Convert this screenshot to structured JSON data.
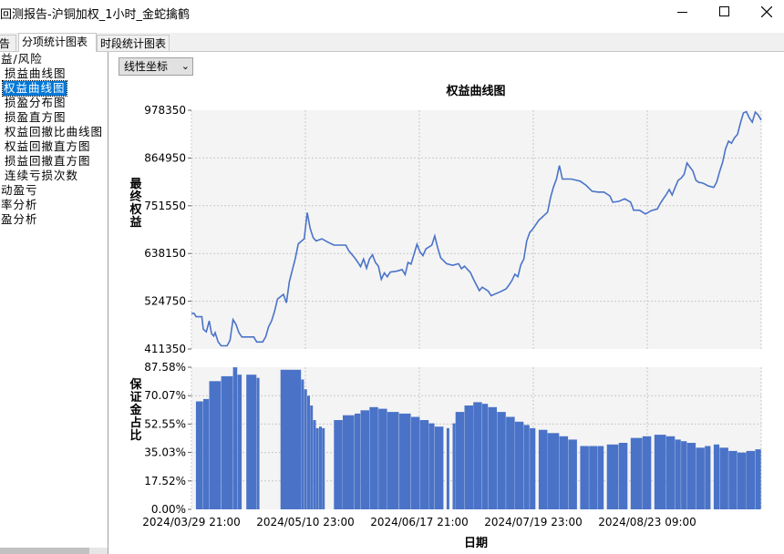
{
  "window": {
    "title": "回测报告-沪铜加权_1小时_金蛇擒鹤"
  },
  "tabs": [
    {
      "label": "告"
    },
    {
      "label": "分项统计图表"
    },
    {
      "label": "时段统计图表"
    }
  ],
  "sidebar": {
    "items": [
      {
        "label": "益/风险"
      },
      {
        "label": "损益曲线图"
      },
      {
        "label": "权益曲线图"
      },
      {
        "label": "损盈分布图"
      },
      {
        "label": "损盈直方图"
      },
      {
        "label": "权益回撤比曲线图"
      },
      {
        "label": "权益回撤直方图"
      },
      {
        "label": "损益回撤直方图"
      },
      {
        "label": "连续亏损次数"
      },
      {
        "label": "动盈亏"
      },
      {
        "label": "率分析"
      },
      {
        "label": "盈分析"
      }
    ]
  },
  "scale_select": {
    "value": "线性坐标"
  },
  "colors": {
    "series": "#4a73c8",
    "plot_bg": "#f4f4f4",
    "grid": "#c8c8c8"
  },
  "chart_data": [
    {
      "type": "line",
      "title": "权益曲线图",
      "ylabel": "最终权益",
      "xlabel": "日期",
      "y_ticks": [
        "978350",
        "864950",
        "751550",
        "638150",
        "524750",
        "411350"
      ],
      "x_ticks": [
        "2024/03/29 21:00",
        "2024/05/10 23:00",
        "2024/06/17 21:00",
        "2024/07/19 23:00",
        "2024/08/23 09:00"
      ],
      "ylim": [
        411350,
        978350
      ],
      "grid": true,
      "series": [
        {
          "points": [
            [
              0,
              496000
            ],
            [
              0.9,
              496000
            ],
            [
              1.6,
              488000
            ],
            [
              3.5,
              488000
            ],
            [
              4,
              458000
            ],
            [
              5,
              452000
            ],
            [
              6,
              478000
            ],
            [
              6.8,
              448000
            ],
            [
              7.5,
              442000
            ],
            [
              8,
              450000
            ],
            [
              9,
              428000
            ],
            [
              10,
              419000
            ],
            [
              12,
              419000
            ],
            [
              13,
              432000
            ],
            [
              14,
              481000
            ],
            [
              15,
              470000
            ],
            [
              16,
              450000
            ],
            [
              17,
              440000
            ],
            [
              19,
              440000
            ],
            [
              21,
              440000
            ],
            [
              22,
              428000
            ],
            [
              24,
              428000
            ],
            [
              25,
              440000
            ],
            [
              26,
              464000
            ],
            [
              27,
              478000
            ],
            [
              28,
              500000
            ],
            [
              29,
              530000
            ],
            [
              31,
              541000
            ],
            [
              32,
              521000
            ],
            [
              33,
              571000
            ],
            [
              35,
              626000
            ],
            [
              36,
              661000
            ],
            [
              38,
              673000
            ],
            [
              39,
              735000
            ],
            [
              40,
              698000
            ],
            [
              41,
              676000
            ],
            [
              42,
              668000
            ],
            [
              44,
              673000
            ],
            [
              46,
              665000
            ],
            [
              48,
              658000
            ],
            [
              52,
              658000
            ],
            [
              53,
              645000
            ],
            [
              55,
              628000
            ],
            [
              56,
              618000
            ],
            [
              57,
              607000
            ],
            [
              58,
              625000
            ],
            [
              59,
              603000
            ],
            [
              60,
              625000
            ],
            [
              61,
              635000
            ],
            [
              62,
              617000
            ],
            [
              63,
              608000
            ],
            [
              64,
              577000
            ],
            [
              65,
              592000
            ],
            [
              66,
              583000
            ],
            [
              67,
              594000
            ],
            [
              69,
              596000
            ],
            [
              70,
              598000
            ],
            [
              71,
              600000
            ],
            [
              72,
              588000
            ],
            [
              73,
              617000
            ],
            [
              74,
              613000
            ],
            [
              76,
              660000
            ],
            [
              77,
              642000
            ],
            [
              78,
              633000
            ],
            [
              79,
              649000
            ],
            [
              81,
              658000
            ],
            [
              82,
              680000
            ],
            [
              83,
              651000
            ],
            [
              84,
              628000
            ],
            [
              86,
              614000
            ],
            [
              88,
              610000
            ],
            [
              90,
              614000
            ],
            [
              91,
              602000
            ],
            [
              92,
              608000
            ],
            [
              94,
              593000
            ],
            [
              95,
              578000
            ],
            [
              96,
              564000
            ],
            [
              97,
              550000
            ],
            [
              98,
              558000
            ],
            [
              100,
              549000
            ],
            [
              101,
              538000
            ],
            [
              103,
              544000
            ],
            [
              104,
              547000
            ],
            [
              106,
              554000
            ],
            [
              107,
              563000
            ],
            [
              108,
              574000
            ],
            [
              109,
              589000
            ],
            [
              110,
              583000
            ],
            [
              111,
              611000
            ],
            [
              112,
              625000
            ],
            [
              113,
              668000
            ],
            [
              114,
              688000
            ],
            [
              115,
              696000
            ],
            [
              116,
              706000
            ],
            [
              117,
              717000
            ],
            [
              118,
              723000
            ],
            [
              119,
              730000
            ],
            [
              120,
              736000
            ],
            [
              121,
              771000
            ],
            [
              122,
              796000
            ],
            [
              123,
              815000
            ],
            [
              124,
              847000
            ],
            [
              125,
              815000
            ],
            [
              128,
              815000
            ],
            [
              131,
              810000
            ],
            [
              133,
              800000
            ],
            [
              135,
              786000
            ],
            [
              137,
              784000
            ],
            [
              139,
              784000
            ],
            [
              141,
              775000
            ],
            [
              142,
              760000
            ],
            [
              144,
              762000
            ],
            [
              146,
              768000
            ],
            [
              148,
              760000
            ],
            [
              149,
              741000
            ],
            [
              151,
              741000
            ],
            [
              153,
              732000
            ],
            [
              155,
              740000
            ],
            [
              157,
              744000
            ],
            [
              158,
              757000
            ],
            [
              159,
              768000
            ],
            [
              160,
              778000
            ],
            [
              161,
              790000
            ],
            [
              162,
              777000
            ],
            [
              163,
              795000
            ],
            [
              164,
              812000
            ],
            [
              165,
              817000
            ],
            [
              166,
              826000
            ],
            [
              167,
              853000
            ],
            [
              168,
              843000
            ],
            [
              169,
              834000
            ],
            [
              170,
              812000
            ],
            [
              171,
              807000
            ],
            [
              172,
              806000
            ],
            [
              173,
              803000
            ],
            [
              174,
              799000
            ],
            [
              176,
              795000
            ],
            [
              177,
              808000
            ],
            [
              178,
              833000
            ],
            [
              179,
              855000
            ],
            [
              180,
              887000
            ],
            [
              181,
              905000
            ],
            [
              182,
              900000
            ],
            [
              183,
              913000
            ],
            [
              184,
              921000
            ],
            [
              185,
              948000
            ],
            [
              186,
              972000
            ],
            [
              187,
              975000
            ],
            [
              188,
              960000
            ],
            [
              189,
              950000
            ],
            [
              190,
              974000
            ],
            [
              191,
              967000
            ],
            [
              192,
              955000
            ]
          ]
        }
      ]
    },
    {
      "type": "bar",
      "ylabel": "保证金占比",
      "xlabel": "日期",
      "y_ticks": [
        "87.58%",
        "70.07%",
        "52.55%",
        "35.03%",
        "17.52%",
        "0.00%"
      ],
      "x_ticks": [
        "2024/03/29 21:00",
        "2024/05/10 23:00",
        "2024/06/17 21:00",
        "2024/07/19 23:00",
        "2024/08/23 09:00"
      ],
      "ylim": [
        0,
        87.58
      ],
      "grid": true,
      "segments": [
        [
          0.5,
          1.5,
          0
        ],
        [
          1.5,
          4,
          66.5
        ],
        [
          4,
          6,
          68
        ],
        [
          6,
          10,
          79
        ],
        [
          10,
          14,
          82
        ],
        [
          14,
          15.5,
          87.5
        ],
        [
          15.5,
          17,
          83
        ],
        [
          17,
          18.5,
          0
        ],
        [
          18.5,
          22,
          83
        ],
        [
          22,
          23,
          81
        ],
        [
          23,
          30,
          0
        ],
        [
          30,
          37,
          86
        ],
        [
          37,
          38,
          80
        ],
        [
          38,
          39,
          74
        ],
        [
          39,
          40,
          70
        ],
        [
          40,
          41,
          64
        ],
        [
          41,
          42,
          55
        ],
        [
          42,
          43,
          50
        ],
        [
          43,
          44,
          51
        ],
        [
          44,
          45,
          50
        ],
        [
          45,
          48,
          0
        ],
        [
          48,
          51,
          55
        ],
        [
          51,
          55,
          58
        ],
        [
          55,
          57,
          59
        ],
        [
          57,
          60,
          61
        ],
        [
          60,
          63,
          63
        ],
        [
          63,
          66,
          62
        ],
        [
          66,
          70,
          60
        ],
        [
          70,
          74,
          59
        ],
        [
          74,
          77,
          57
        ],
        [
          77,
          80,
          55
        ],
        [
          80,
          82,
          53
        ],
        [
          82,
          85,
          51
        ],
        [
          85,
          86,
          0
        ],
        [
          86,
          87,
          50
        ],
        [
          87,
          88,
          0
        ],
        [
          88,
          89,
          53
        ],
        [
          89,
          92,
          60
        ],
        [
          92,
          95,
          64
        ],
        [
          95,
          98,
          66
        ],
        [
          98,
          100,
          65
        ],
        [
          100,
          103,
          63
        ],
        [
          103,
          106,
          60
        ],
        [
          106,
          109,
          57
        ],
        [
          109,
          112,
          54
        ],
        [
          112,
          114,
          52
        ],
        [
          114,
          116,
          50
        ],
        [
          116,
          117,
          0
        ],
        [
          117,
          120,
          49
        ],
        [
          120,
          124,
          47
        ],
        [
          124,
          127,
          45
        ],
        [
          127,
          130,
          43
        ],
        [
          130,
          131,
          0
        ],
        [
          131,
          134,
          39
        ],
        [
          134,
          137,
          39
        ],
        [
          137,
          139,
          39
        ],
        [
          139,
          140,
          0
        ],
        [
          140,
          144,
          40
        ],
        [
          144,
          147,
          41
        ],
        [
          147,
          148,
          0
        ],
        [
          148,
          152,
          44
        ],
        [
          152,
          155,
          45
        ],
        [
          155,
          156,
          0
        ],
        [
          156,
          160,
          46
        ],
        [
          160,
          163,
          45
        ],
        [
          163,
          165,
          43
        ],
        [
          165,
          167,
          42
        ],
        [
          167,
          170,
          41
        ],
        [
          170,
          173,
          38
        ],
        [
          173,
          175,
          39
        ],
        [
          175,
          176,
          0
        ],
        [
          176,
          178,
          40
        ],
        [
          178,
          181,
          38
        ],
        [
          181,
          184,
          36
        ],
        [
          184,
          187,
          35
        ],
        [
          187,
          190,
          36
        ],
        [
          190,
          192,
          37
        ]
      ]
    }
  ]
}
